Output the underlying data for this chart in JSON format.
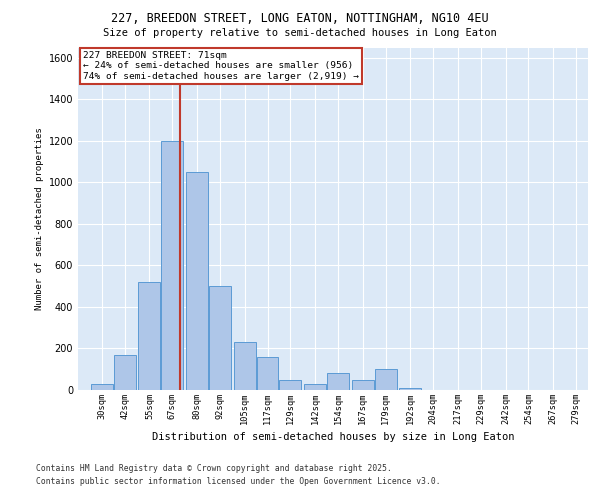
{
  "title1": "227, BREEDON STREET, LONG EATON, NOTTINGHAM, NG10 4EU",
  "title2": "Size of property relative to semi-detached houses in Long Eaton",
  "xlabel": "Distribution of semi-detached houses by size in Long Eaton",
  "ylabel": "Number of semi-detached properties",
  "footnote1": "Contains HM Land Registry data © Crown copyright and database right 2025.",
  "footnote2": "Contains public sector information licensed under the Open Government Licence v3.0.",
  "annotation_title": "227 BREEDON STREET: 71sqm",
  "annotation_line1": "← 24% of semi-detached houses are smaller (956)",
  "annotation_line2": "74% of semi-detached houses are larger (2,919) →",
  "property_size": 71,
  "bar_color": "#aec6e8",
  "bar_edge_color": "#5b9bd5",
  "vline_color": "#c0392b",
  "annotation_box_color": "#c0392b",
  "background_color": "#dce9f7",
  "categories": [
    30,
    42,
    55,
    67,
    80,
    92,
    105,
    117,
    129,
    142,
    154,
    167,
    179,
    192,
    204,
    217,
    229,
    242,
    254,
    267,
    279
  ],
  "bin_labels": [
    "30sqm",
    "42sqm",
    "55sqm",
    "67sqm",
    "80sqm",
    "92sqm",
    "105sqm",
    "117sqm",
    "129sqm",
    "142sqm",
    "154sqm",
    "167sqm",
    "179sqm",
    "192sqm",
    "204sqm",
    "217sqm",
    "229sqm",
    "242sqm",
    "254sqm",
    "267sqm",
    "279sqm"
  ],
  "values": [
    30,
    170,
    520,
    1200,
    1050,
    500,
    230,
    160,
    50,
    30,
    80,
    50,
    100,
    10,
    0,
    0,
    0,
    0,
    0,
    0,
    0
  ],
  "ylim": [
    0,
    1650
  ],
  "yticks": [
    0,
    200,
    400,
    600,
    800,
    1000,
    1200,
    1400,
    1600
  ]
}
